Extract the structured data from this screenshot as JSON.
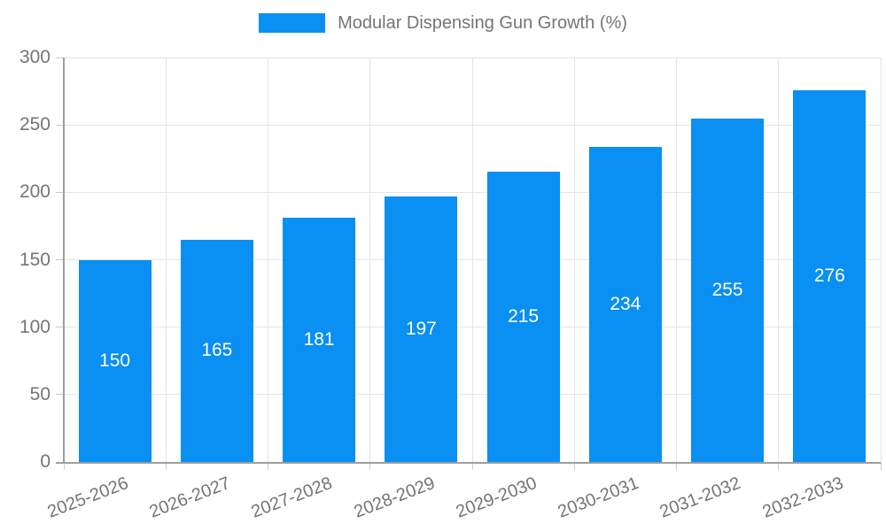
{
  "legend": {
    "label": "Modular Dispensing Gun Growth (%)"
  },
  "chart_data": {
    "type": "bar",
    "title": "",
    "series_name": "Modular Dispensing Gun Growth (%)",
    "categories": [
      "2025-2026",
      "2026-2027",
      "2027-2028",
      "2028-2029",
      "2029-2030",
      "2030-2031",
      "2031-2032",
      "2032-2033"
    ],
    "values": [
      150,
      165,
      181,
      197,
      215,
      234,
      255,
      276
    ],
    "bar_labels": [
      "150",
      "165",
      "181",
      "197",
      "215",
      "234",
      "255",
      "276"
    ],
    "xlabel": "",
    "ylabel": "",
    "ylim": [
      0,
      300
    ],
    "yticks": [
      0,
      50,
      100,
      150,
      200,
      250,
      300
    ],
    "grid": true,
    "legend_position": "top",
    "colors": {
      "bar": "#0a8ff2",
      "bar_label": "#ffffff",
      "axis_text": "#757575",
      "axis_line": "#9e9e9e",
      "gridline": "#e5e5e5",
      "tick": "#cccccc",
      "background": "#ffffff"
    }
  }
}
